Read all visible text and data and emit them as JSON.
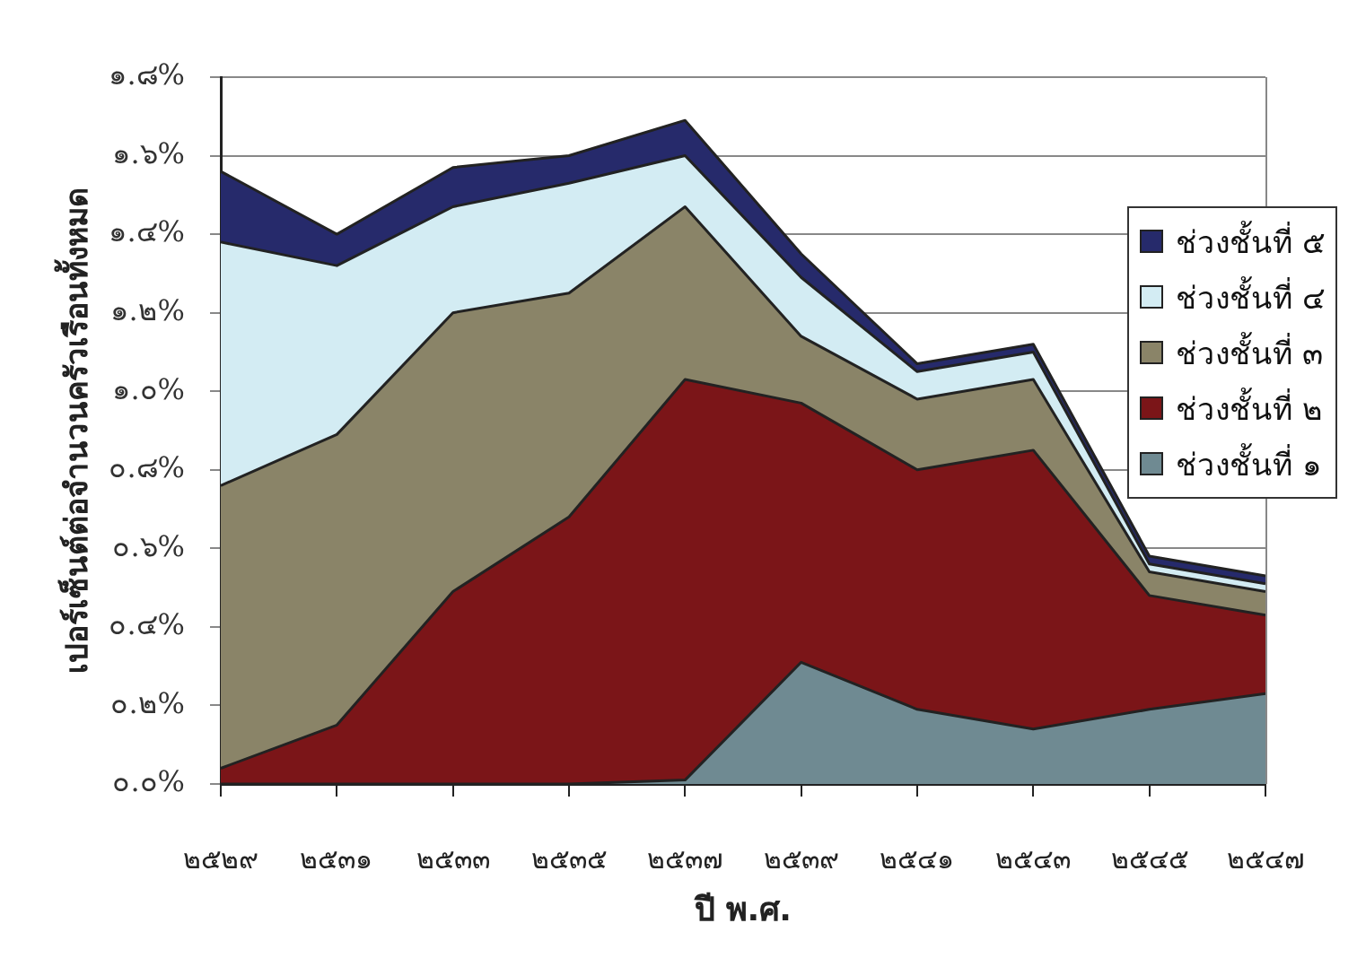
{
  "chart_data": {
    "type": "area",
    "stacked": true,
    "xlabel": "ปี พ.ศ.",
    "ylabel": "เปอร์เซ็นต์ต่อจำนวนครัวเรือนทั้งหมด",
    "categories": [
      "๒๕๒๙",
      "๒๕๓๑",
      "๒๕๓๓",
      "๒๕๓๕",
      "๒๕๓๗",
      "๒๕๓๙",
      "๒๕๔๑",
      "๒๕๔๓",
      "๒๕๔๕",
      "๒๕๔๗"
    ],
    "series": [
      {
        "name": "ช่วงชั้นที่ ๑",
        "color": "#6f8a92",
        "values": [
          0,
          0,
          0,
          0,
          0.01,
          0.31,
          0.19,
          0.14,
          0.19,
          0.23
        ]
      },
      {
        "name": "ช่วงชั้นที่ ๒",
        "color": "#7b1518",
        "values": [
          0.04,
          0.15,
          0.49,
          0.68,
          1.02,
          0.66,
          0.61,
          0.71,
          0.29,
          0.2
        ]
      },
      {
        "name": "ช่วงชั้นที่ ๓",
        "color": "#8a8468",
        "values": [
          0.72,
          0.74,
          0.71,
          0.57,
          0.44,
          0.17,
          0.18,
          0.18,
          0.06,
          0.06
        ]
      },
      {
        "name": "ช่วงชั้นที่ ๔",
        "color": "#d3ecf3",
        "values": [
          0.62,
          0.43,
          0.27,
          0.28,
          0.13,
          0.15,
          0.07,
          0.07,
          0.02,
          0.02
        ]
      },
      {
        "name": "ช่วงชั้นที่ ๕",
        "color": "#262a6b",
        "values": [
          0.18,
          0.08,
          0.1,
          0.07,
          0.09,
          0.06,
          0.02,
          0.02,
          0.02,
          0.02
        ]
      }
    ],
    "ylim": [
      0,
      1.8
    ],
    "yticks": [
      {
        "value": 0,
        "label": "๐.๐%"
      },
      {
        "value": 0.2,
        "label": "๐.๒%"
      },
      {
        "value": 0.4,
        "label": "๐.๔%"
      },
      {
        "value": 0.6,
        "label": "๐.๖%"
      },
      {
        "value": 0.8,
        "label": "๐.๘%"
      },
      {
        "value": 1,
        "label": "๑.๐%"
      },
      {
        "value": 1.2,
        "label": "๑.๒%"
      },
      {
        "value": 1.4,
        "label": "๑.๔%"
      },
      {
        "value": 1.6,
        "label": "๑.๖%"
      },
      {
        "value": 1.8,
        "label": "๑.๘%"
      }
    ],
    "grid": "y",
    "legend": "right"
  }
}
